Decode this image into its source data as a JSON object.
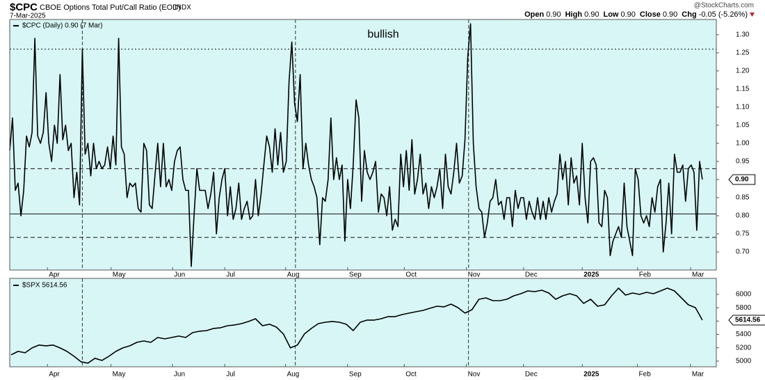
{
  "chart_data": [
    {
      "type": "line",
      "symbol": "$CPC",
      "title": "CBOE Options Total Put/Call Ratio (EOD)",
      "exchange": "INDX",
      "date": "7-Mar-2025",
      "source": "@StockCharts.com",
      "quote": [
        {
          "label": "Open",
          "value": "0.90"
        },
        {
          "label": "High",
          "value": "0.90"
        },
        {
          "label": "Low",
          "value": "0.90"
        },
        {
          "label": "Close",
          "value": "0.90"
        },
        {
          "label": "Chg",
          "value": "-0.05 (-5.26%)"
        }
      ],
      "legend": "$CPC (Daily) 0.90 (7 Mar)",
      "last_label": "0.90",
      "annotation": "bullish",
      "color": "#000000",
      "background": "#d7f6f5",
      "values": [
        0.98,
        1.07,
        0.87,
        0.89,
        0.8,
        0.87,
        1.02,
        0.99,
        1.03,
        1.29,
        1.02,
        1.0,
        1.03,
        1.14,
        1.0,
        0.95,
        1.05,
        1.0,
        1.19,
        1.01,
        1.05,
        0.98,
        1.0,
        0.85,
        0.92,
        0.83,
        1.26,
        0.97,
        1.0,
        0.91,
        1.0,
        0.93,
        0.95,
        0.93,
        0.94,
        0.99,
        0.93,
        1.02,
        0.94,
        1.29,
        0.99,
        0.97,
        0.85,
        0.89,
        0.88,
        0.89,
        0.82,
        0.81,
        1.0,
        0.98,
        0.83,
        0.82,
        0.91,
        1.0,
        0.88,
        1.0,
        0.88,
        0.9,
        0.87,
        0.95,
        0.98,
        0.99,
        0.9,
        0.87,
        0.87,
        0.66,
        0.8,
        0.93,
        0.87,
        0.87,
        0.87,
        0.82,
        0.86,
        0.92,
        0.75,
        0.85,
        0.9,
        0.93,
        0.8,
        0.88,
        0.79,
        0.82,
        0.89,
        0.79,
        0.82,
        0.84,
        0.79,
        0.8,
        0.9,
        0.8,
        0.86,
        0.94,
        1.02,
        0.99,
        0.92,
        1.04,
        0.94,
        1.03,
        0.92,
        0.95,
        1.17,
        1.28,
        1.11,
        1.06,
        1.19,
        0.93,
        1.0,
        0.94,
        0.9,
        0.88,
        0.85,
        0.72,
        0.85,
        0.84,
        0.9,
        1.07,
        0.9,
        0.96,
        0.9,
        0.94,
        0.73,
        0.9,
        0.82,
        0.94,
        1.12,
        1.07,
        0.84,
        0.98,
        0.92,
        0.9,
        0.92,
        0.95,
        0.81,
        0.86,
        0.85,
        0.8,
        0.88,
        0.76,
        0.79,
        0.77,
        0.97,
        0.88,
        0.98,
        0.87,
        1.01,
        0.86,
        0.9,
        0.97,
        0.86,
        0.89,
        0.82,
        0.88,
        0.85,
        0.88,
        0.93,
        0.82,
        0.97,
        0.88,
        0.86,
        0.92,
        1.0,
        0.89,
        0.91,
        1.01,
        1.24,
        1.33,
        1.0,
        0.88,
        0.82,
        0.81,
        0.74,
        0.78,
        0.84,
        0.85,
        0.9,
        0.83,
        0.84,
        0.79,
        0.85,
        0.85,
        0.77,
        0.87,
        0.82,
        0.85,
        0.85,
        0.79,
        0.84,
        0.81,
        0.79,
        0.85,
        0.79,
        0.84,
        0.79,
        0.85,
        0.81,
        0.84,
        0.86,
        0.97,
        0.9,
        0.95,
        0.83,
        0.96,
        0.89,
        0.91,
        0.83,
        1.0,
        0.85,
        0.78,
        0.95,
        0.96,
        0.94,
        0.78,
        0.77,
        0.87,
        0.85,
        0.69,
        0.73,
        0.75,
        0.77,
        0.74,
        0.89,
        0.77,
        0.73,
        0.69,
        0.93,
        0.9,
        0.8,
        0.78,
        0.8,
        0.77,
        0.85,
        0.81,
        0.88,
        0.9,
        0.7,
        0.78,
        0.89,
        0.75,
        0.97,
        0.92,
        0.92,
        0.94,
        0.84,
        0.93,
        0.94,
        0.92,
        0.76,
        0.95,
        0.9
      ],
      "xlim": [
        0,
        253
      ],
      "xticks": [
        {
          "value": 13.5,
          "label": "Apr"
        },
        {
          "value": 36.3,
          "label": "May"
        },
        {
          "value": 58.3,
          "label": "Jun"
        },
        {
          "value": 77,
          "label": "Jul"
        },
        {
          "value": 98.8,
          "label": "Aug"
        },
        {
          "value": 121,
          "label": "Sep"
        },
        {
          "value": 141.3,
          "label": "Oct"
        },
        {
          "value": 163.5,
          "label": "Nov"
        },
        {
          "value": 184,
          "label": "Dec"
        },
        {
          "value": 205,
          "label": "2025",
          "bold": true
        },
        {
          "value": 224.8,
          "label": "Feb"
        },
        {
          "value": 243.8,
          "label": "Mar"
        }
      ],
      "ylim": [
        0.65,
        1.342
      ],
      "yticks": [
        {
          "value": 0.7,
          "label": "0.70"
        },
        0.75,
        {
          "value": 0.8,
          "label": "0.80"
        },
        0.85,
        {
          "value": 0.9,
          "label": "0.90"
        },
        0.95,
        {
          "value": 1.0,
          "label": "1.00"
        },
        1.05,
        {
          "value": 1.1,
          "label": "1.10"
        },
        1.15,
        {
          "value": 1.2,
          "label": "1.20"
        },
        1.25,
        {
          "value": 1.3,
          "label": "1.30"
        }
      ],
      "ref_lines": [
        1.26,
        0.93,
        0.805,
        0.74
      ],
      "ref_styles": [
        "dotted",
        "dashed",
        "solid",
        "dashed"
      ],
      "vlines": [
        26,
        102.3,
        164.3
      ]
    },
    {
      "type": "line",
      "legend": "$SPX 5614.56",
      "last_label": "5614.56",
      "color": "#000000",
      "background": "#d7f6f5",
      "values": [
        5094,
        5146,
        5125,
        5198,
        5240,
        5229,
        5240,
        5198,
        5146,
        5073,
        4990,
        4969,
        5042,
        5010,
        5073,
        5146,
        5198,
        5229,
        5281,
        5302,
        5281,
        5354,
        5333,
        5354,
        5375,
        5354,
        5427,
        5448,
        5458,
        5490,
        5500,
        5531,
        5542,
        5562,
        5594,
        5635,
        5531,
        5552,
        5510,
        5406,
        5198,
        5240,
        5406,
        5490,
        5562,
        5583,
        5594,
        5583,
        5552,
        5458,
        5583,
        5615,
        5615,
        5635,
        5667,
        5667,
        5698,
        5719,
        5740,
        5760,
        5792,
        5823,
        5813,
        5854,
        5802,
        5719,
        5771,
        5927,
        5948,
        5906,
        5906,
        5927,
        5979,
        6010,
        6052,
        6042,
        6063,
        6021,
        5927,
        5979,
        6010,
        5979,
        5865,
        5927,
        5823,
        5844,
        5979,
        6094,
        5990,
        6021,
        6000,
        6031,
        6010,
        6052,
        6094,
        6052,
        5948,
        5844,
        5802,
        5614.56
      ],
      "xlim": [
        -0.2,
        101
      ],
      "xticks": [
        {
          "value": 5.2,
          "label": "Apr"
        },
        {
          "value": 14.3,
          "label": "May"
        },
        {
          "value": 23.1,
          "label": "Jun"
        },
        {
          "value": 30.6,
          "label": "Jul"
        },
        {
          "value": 39.3,
          "label": "Aug"
        },
        {
          "value": 48.2,
          "label": "Sep"
        },
        {
          "value": 56.3,
          "label": "Oct"
        },
        {
          "value": 65.2,
          "label": "Nov"
        },
        {
          "value": 73.4,
          "label": "Dec"
        },
        {
          "value": 81.8,
          "label": "2025",
          "bold": true
        },
        {
          "value": 89.7,
          "label": "Feb"
        },
        {
          "value": 97.3,
          "label": "Mar"
        }
      ],
      "ylim": [
        4915,
        6240
      ],
      "yticks": [
        5000,
        5200,
        5400,
        5600,
        5800,
        6000
      ],
      "vlines": [
        10.2,
        40.7,
        65.5
      ]
    }
  ]
}
